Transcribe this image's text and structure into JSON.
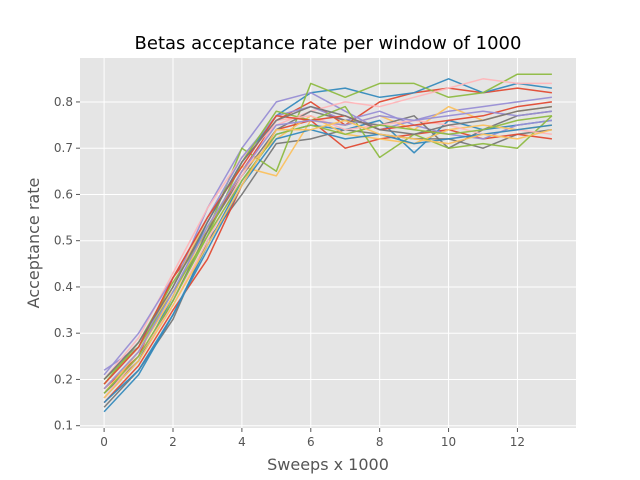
{
  "chart_data": {
    "type": "line",
    "title": "Betas acceptance rate per window of 1000",
    "xlabel": "Sweeps x 1000",
    "ylabel": "Acceptance rate",
    "xlim": [
      -0.7,
      13.7
    ],
    "ylim": [
      0.095,
      0.895
    ],
    "xticks": [
      0,
      2,
      4,
      6,
      8,
      10,
      12
    ],
    "yticks": [
      0.1,
      0.2,
      0.3,
      0.4,
      0.5,
      0.6,
      0.7,
      0.8
    ],
    "grid": true,
    "legend": "none",
    "x": [
      0,
      1,
      2,
      3,
      4,
      5,
      6,
      7,
      8,
      9,
      10,
      11,
      12,
      13
    ],
    "series": [
      {
        "color": "#E24A33",
        "values": [
          0.18,
          0.25,
          0.42,
          0.52,
          0.65,
          0.76,
          0.8,
          0.75,
          0.8,
          0.82,
          0.83,
          0.82,
          0.83,
          0.82
        ]
      },
      {
        "color": "#348ABD",
        "values": [
          0.16,
          0.24,
          0.38,
          0.54,
          0.67,
          0.77,
          0.82,
          0.83,
          0.81,
          0.82,
          0.85,
          0.82,
          0.84,
          0.83
        ]
      },
      {
        "color": "#988ED5",
        "values": [
          0.22,
          0.27,
          0.4,
          0.57,
          0.7,
          0.8,
          0.82,
          0.78,
          0.74,
          0.76,
          0.78,
          0.79,
          0.8,
          0.81
        ]
      },
      {
        "color": "#777777",
        "values": [
          0.14,
          0.22,
          0.33,
          0.5,
          0.6,
          0.71,
          0.72,
          0.74,
          0.73,
          0.72,
          0.72,
          0.7,
          0.73,
          0.74
        ]
      },
      {
        "color": "#FBC15E",
        "values": [
          0.17,
          0.26,
          0.4,
          0.55,
          0.66,
          0.64,
          0.76,
          0.75,
          0.77,
          0.74,
          0.79,
          0.76,
          0.78,
          0.79
        ]
      },
      {
        "color": "#8EBA42",
        "values": [
          0.19,
          0.28,
          0.41,
          0.52,
          0.7,
          0.65,
          0.84,
          0.81,
          0.84,
          0.84,
          0.81,
          0.82,
          0.86,
          0.86
        ]
      },
      {
        "color": "#FFB5B8",
        "values": [
          0.2,
          0.29,
          0.43,
          0.57,
          0.68,
          0.75,
          0.78,
          0.8,
          0.79,
          0.81,
          0.83,
          0.85,
          0.84,
          0.84
        ]
      },
      {
        "color": "#E24A33",
        "values": [
          0.15,
          0.23,
          0.35,
          0.46,
          0.62,
          0.74,
          0.76,
          0.7,
          0.72,
          0.73,
          0.74,
          0.72,
          0.73,
          0.72
        ]
      },
      {
        "color": "#348ABD",
        "values": [
          0.13,
          0.21,
          0.34,
          0.49,
          0.63,
          0.73,
          0.75,
          0.74,
          0.76,
          0.69,
          0.76,
          0.74,
          0.75,
          0.76
        ]
      },
      {
        "color": "#988ED5",
        "values": [
          0.21,
          0.3,
          0.42,
          0.55,
          0.68,
          0.77,
          0.79,
          0.76,
          0.78,
          0.75,
          0.73,
          0.72,
          0.75,
          0.76
        ]
      },
      {
        "color": "#777777",
        "values": [
          0.17,
          0.24,
          0.37,
          0.52,
          0.64,
          0.74,
          0.78,
          0.76,
          0.75,
          0.77,
          0.7,
          0.74,
          0.77,
          0.78
        ]
      },
      {
        "color": "#FBC15E",
        "values": [
          0.18,
          0.26,
          0.38,
          0.53,
          0.65,
          0.72,
          0.77,
          0.73,
          0.72,
          0.71,
          0.74,
          0.75,
          0.74,
          0.75
        ]
      },
      {
        "color": "#8EBA42",
        "values": [
          0.2,
          0.27,
          0.39,
          0.51,
          0.67,
          0.78,
          0.76,
          0.79,
          0.68,
          0.73,
          0.7,
          0.71,
          0.7,
          0.77
        ]
      },
      {
        "color": "#FFB5B8",
        "values": [
          0.16,
          0.25,
          0.36,
          0.5,
          0.64,
          0.76,
          0.77,
          0.74,
          0.75,
          0.76,
          0.75,
          0.73,
          0.74,
          0.73
        ]
      },
      {
        "color": "#E24A33",
        "values": [
          0.19,
          0.27,
          0.42,
          0.55,
          0.66,
          0.77,
          0.76,
          0.77,
          0.74,
          0.75,
          0.76,
          0.77,
          0.79,
          0.8
        ]
      },
      {
        "color": "#348ABD",
        "values": [
          0.15,
          0.22,
          0.34,
          0.48,
          0.62,
          0.72,
          0.74,
          0.72,
          0.73,
          0.71,
          0.72,
          0.73,
          0.74,
          0.75
        ]
      },
      {
        "color": "#988ED5",
        "values": [
          0.18,
          0.26,
          0.39,
          0.53,
          0.65,
          0.75,
          0.76,
          0.75,
          0.77,
          0.76,
          0.77,
          0.78,
          0.77,
          0.78
        ]
      },
      {
        "color": "#777777",
        "values": [
          0.2,
          0.28,
          0.4,
          0.54,
          0.67,
          0.76,
          0.79,
          0.77,
          0.74,
          0.73,
          0.75,
          0.76,
          0.78,
          0.79
        ]
      },
      {
        "color": "#8EBA42",
        "values": [
          0.17,
          0.25,
          0.37,
          0.51,
          0.63,
          0.73,
          0.75,
          0.73,
          0.75,
          0.74,
          0.73,
          0.74,
          0.76,
          0.77
        ]
      },
      {
        "color": "#FBC15E",
        "values": [
          0.16,
          0.24,
          0.36,
          0.49,
          0.62,
          0.74,
          0.74,
          0.76,
          0.73,
          0.72,
          0.71,
          0.73,
          0.72,
          0.74
        ]
      }
    ]
  }
}
